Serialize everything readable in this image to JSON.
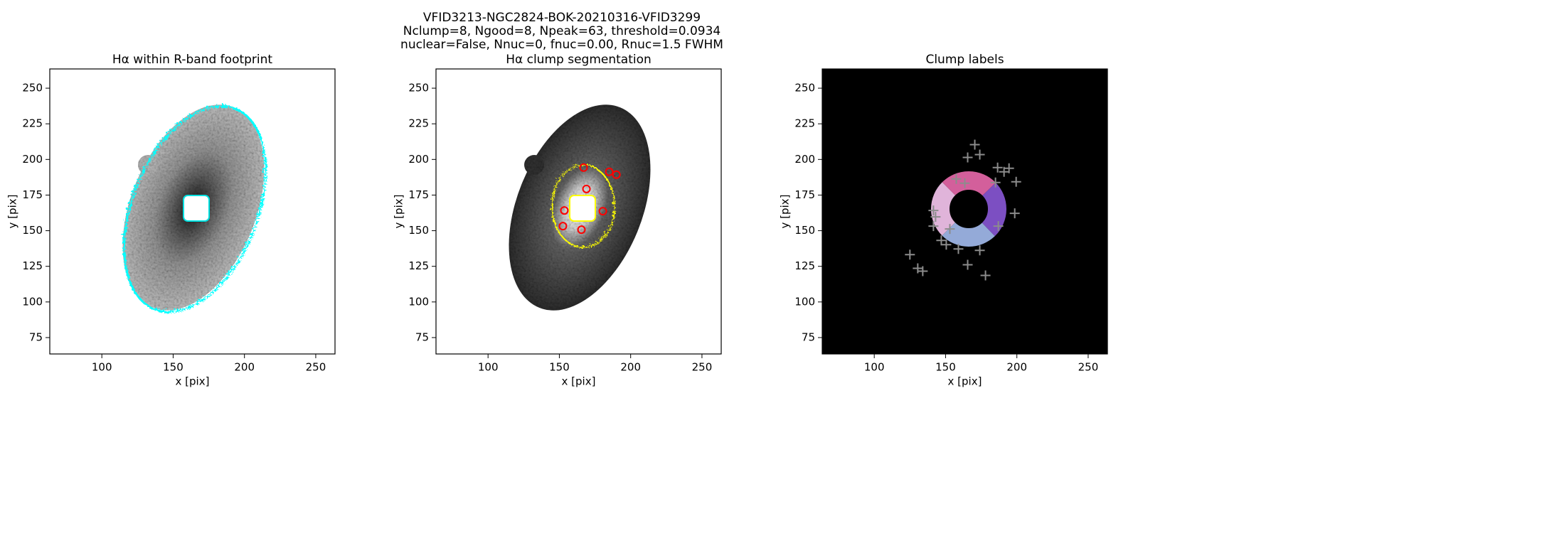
{
  "suptitle": [
    "VFID3213-NGC2824-BOK-20210316-VFID3299",
    "Nclump=8, Ngood=8, Npeak=63, threshold=0.0934",
    "nuclear=False, Nnuc=0, fnuc=0.00, Rnuc=1.5 FWHM"
  ],
  "chart_data": [
    {
      "type": "image",
      "title": "Hα within R-band footprint",
      "x_label": "x [pix]",
      "y_label": "y [pix]",
      "xlim": [
        63.5,
        263.5
      ],
      "ylim": [
        63.5,
        263.5
      ],
      "xticks": [
        100,
        150,
        200,
        250
      ],
      "yticks": [
        75,
        100,
        125,
        150,
        175,
        200,
        225,
        250
      ]
    },
    {
      "type": "image",
      "title": "Hα clump segmentation",
      "x_label": "x [pix]",
      "y_label": "y [pix]",
      "xlim": [
        63.5,
        263.5
      ],
      "ylim": [
        63.5,
        263.5
      ],
      "xticks": [
        100,
        150,
        200,
        250
      ],
      "yticks": [
        75,
        100,
        125,
        150,
        175,
        200,
        225,
        250
      ],
      "clumps": {
        "color": "#ff0000",
        "x": [
          167,
          185,
          190,
          169,
          153.5,
          180.5,
          152.5,
          165.5
        ],
        "y": [
          194.3,
          191.3,
          189.3,
          179.3,
          164.2,
          163.7,
          153.2,
          150.7
        ]
      }
    },
    {
      "type": "image",
      "title": "Clump labels",
      "x_label": "x [pix]",
      "y_label": "y [pix]",
      "xlim": [
        63.5,
        263.5
      ],
      "ylim": [
        63.5,
        263.5
      ],
      "xticks": [
        100,
        150,
        200,
        250
      ],
      "yticks": [
        75,
        100,
        125,
        150,
        175,
        200,
        225,
        250
      ],
      "peaks": {
        "color": "#8c8c8c",
        "x": [
          170.5,
          174,
          165.5,
          157.5,
          163.5,
          186.5,
          191,
          194.5,
          185,
          199.5,
          141.5,
          143,
          198.5,
          187,
          141.5,
          153,
          147,
          150.5,
          159,
          174,
          125,
          130.5,
          134,
          165.5,
          178
        ],
        "y": [
          210.4,
          203.4,
          201.4,
          186.3,
          183.3,
          194.3,
          191.3,
          193.8,
          183.8,
          184.3,
          164.2,
          159.7,
          162.2,
          153.2,
          153.2,
          151.2,
          143.2,
          140.2,
          137.2,
          136.2,
          133.2,
          123.6,
          121.6,
          126.1,
          118.6
        ]
      }
    }
  ]
}
